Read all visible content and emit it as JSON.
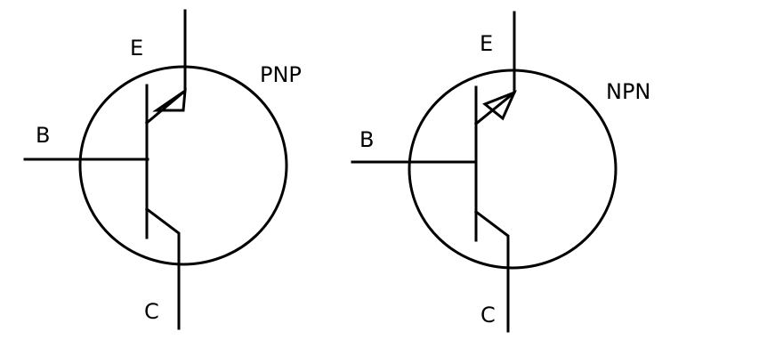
{
  "symbols": [
    {
      "type": "PNP",
      "labels": {
        "emitter": "E",
        "base": "B",
        "collector": "C",
        "type": "PNP"
      }
    },
    {
      "type": "NPN",
      "labels": {
        "emitter": "E",
        "base": "B",
        "collector": "C",
        "type": "NPN"
      }
    }
  ],
  "colors": {
    "stroke": "#000000",
    "background": "#ffffff"
  }
}
